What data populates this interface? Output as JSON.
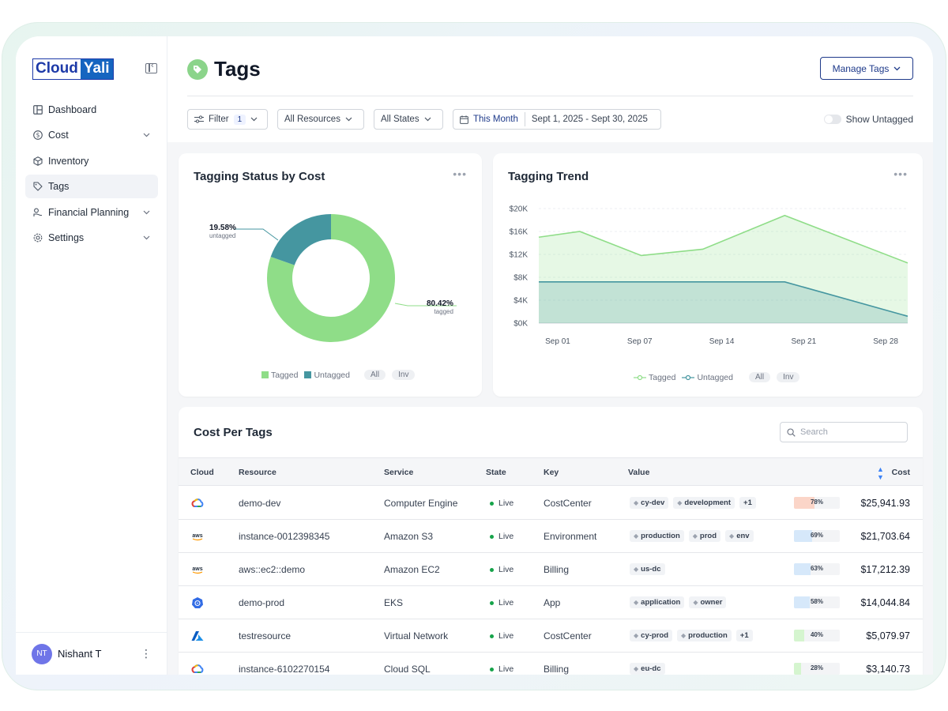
{
  "brand": {
    "part1": "Cloud",
    "part2": "Yali"
  },
  "sidebar": {
    "items": [
      {
        "label": "Dashboard",
        "icon": "dashboard-icon",
        "chevron": false
      },
      {
        "label": "Cost",
        "icon": "dollar-icon",
        "chevron": true
      },
      {
        "label": "Inventory",
        "icon": "cube-icon",
        "chevron": false
      },
      {
        "label": "Tags",
        "icon": "tag-icon",
        "chevron": false,
        "active": true
      },
      {
        "label": "Financial Planning",
        "icon": "planning-icon",
        "chevron": true
      },
      {
        "label": "Settings",
        "icon": "gear-icon",
        "chevron": true
      }
    ],
    "user": {
      "initials": "NT",
      "name": "Nishant T"
    }
  },
  "header": {
    "title": "Tags",
    "manage_label": "Manage Tags"
  },
  "filters": {
    "filter_label": "Filter",
    "filter_count": "1",
    "resources": "All Resources",
    "states": "All States",
    "period": "This Month",
    "range": "Sept 1, 2025 - Sept 30, 2025",
    "show_untagged": "Show Untagged"
  },
  "status_card": {
    "title": "Tagging Status by Cost",
    "untagged_pct": "19.58%",
    "untagged_label": "untagged",
    "tagged_pct": "80.42%",
    "tagged_label": "tagged",
    "legend": [
      "Tagged",
      "Untagged"
    ],
    "pills": [
      "All",
      "Inv"
    ]
  },
  "trend_card": {
    "title": "Tagging Trend",
    "legend": [
      "Tagged",
      "Untagged"
    ],
    "pills": [
      "All",
      "Inv"
    ]
  },
  "chart_data": [
    {
      "type": "pie",
      "title": "Tagging Status by Cost",
      "labels": [
        "Tagged",
        "Untagged"
      ],
      "values": [
        80.42,
        19.58
      ],
      "colors": [
        "#8fdd88",
        "#4596a0"
      ],
      "donut": true
    },
    {
      "type": "area",
      "title": "Tagging Trend",
      "categories": [
        "Sep 01",
        "Sep 07",
        "Sep 14",
        "Sep 21",
        "Sep 28"
      ],
      "x": [
        0,
        0.42,
        1,
        1.42,
        2,
        3,
        4,
        4.42
      ],
      "series": [
        {
          "name": "Tagged",
          "values": [
            15000,
            16000,
            11800,
            12900,
            18800,
            10500
          ],
          "x": [
            0,
            0.5,
            1.25,
            2,
            3,
            4.5
          ],
          "color": "#8fdd88"
        },
        {
          "name": "Untagged",
          "values": [
            7200,
            7200,
            7200,
            1200
          ],
          "x": [
            0,
            1.25,
            3,
            4.5
          ],
          "color": "#4596a0"
        }
      ],
      "y_ticks": [
        "$20K",
        "$16K",
        "$12K",
        "$8K",
        "$4K",
        "$0K"
      ],
      "ylim": [
        0,
        20000
      ],
      "xlim": [
        0,
        4.5
      ],
      "grid": true,
      "legend_position": "bottom"
    }
  ],
  "table": {
    "title": "Cost Per Tags",
    "search_placeholder": "Search",
    "columns": [
      "Cloud",
      "Resource",
      "Service",
      "State",
      "Key",
      "Value",
      "Cost"
    ],
    "rows": [
      {
        "cloud": "gcp",
        "resource": "demo-dev",
        "service": "Computer Engine",
        "state": "Live",
        "key": "CostCenter",
        "values": [
          "cy-dev",
          "development"
        ],
        "more": "+1",
        "pct": 78,
        "pct_label": "78%",
        "pct_color": "#fbd5c8",
        "cost": "$25,941.93"
      },
      {
        "cloud": "aws",
        "resource": "instance-0012398345",
        "service": "Amazon S3",
        "state": "Live",
        "key": "Environment",
        "values": [
          "production",
          "prod",
          "env"
        ],
        "more": "",
        "pct": 69,
        "pct_label": "69%",
        "pct_color": "#d6e8fa",
        "cost": "$21,703.64"
      },
      {
        "cloud": "aws",
        "resource": "aws::ec2::demo",
        "service": "Amazon EC2",
        "state": "Live",
        "key": "Billing",
        "values": [
          "us-dc"
        ],
        "more": "",
        "pct": 63,
        "pct_label": "63%",
        "pct_color": "#d6e8fa",
        "cost": "$17,212.39"
      },
      {
        "cloud": "kubernetes",
        "resource": "demo-prod",
        "service": "EKS",
        "state": "Live",
        "key": "App",
        "values": [
          "application",
          "owner"
        ],
        "more": "",
        "pct": 58,
        "pct_label": "58%",
        "pct_color": "#d6e8fa",
        "cost": "$14,044.84"
      },
      {
        "cloud": "azure",
        "resource": "testresource",
        "service": "Virtual Network",
        "state": "Live",
        "key": "CostCenter",
        "values": [
          "cy-prod",
          "production"
        ],
        "more": "+1",
        "pct": 40,
        "pct_label": "40%",
        "pct_color": "#d5f5cf",
        "cost": "$5,079.97"
      },
      {
        "cloud": "gcp",
        "resource": "instance-6102270154",
        "service": "Cloud SQL",
        "state": "Live",
        "key": "Billing",
        "values": [
          "eu-dc"
        ],
        "more": "",
        "pct": 28,
        "pct_label": "28%",
        "pct_color": "#d5f5cf",
        "cost": "$3,140.73"
      }
    ]
  }
}
